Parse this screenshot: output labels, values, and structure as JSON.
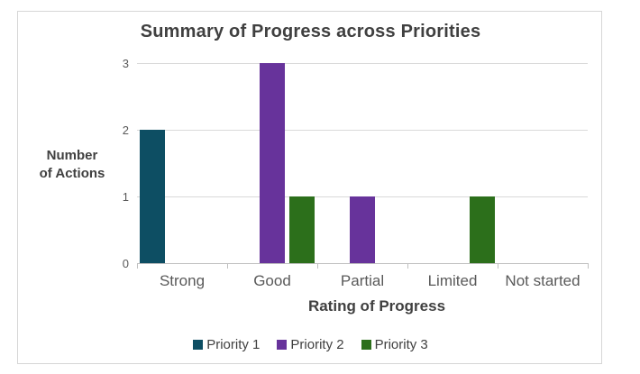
{
  "title": "Summary of Progress across Priorities",
  "y_axis": {
    "title": "Number of Actions",
    "title_lines": [
      "Number",
      "of Actions"
    ],
    "ticks": [
      0,
      1,
      2,
      3
    ]
  },
  "x_axis": {
    "title": "Rating of Progress"
  },
  "legend": {
    "items": [
      "Priority 1",
      "Priority 2",
      "Priority 3"
    ]
  },
  "colors": {
    "priority1": "#0d4e63",
    "priority2": "#67339b",
    "priority3": "#2c6f1b",
    "gridline": "#d9d9d9",
    "axis": "#bfbfbf",
    "title_text": "#404040",
    "tick_text": "#595959",
    "frame_border": "#d6d6d6",
    "background": "#ffffff"
  },
  "chart_data": {
    "type": "bar",
    "title": "Summary of Progress across Priorities",
    "categories": [
      "Strong",
      "Good",
      "Partial",
      "Limited",
      "Not started"
    ],
    "series": [
      {
        "name": "Priority 1",
        "color": "#0d4e63",
        "values": [
          2,
          0,
          0,
          0,
          0
        ]
      },
      {
        "name": "Priority 2",
        "color": "#67339b",
        "values": [
          0,
          3,
          1,
          0,
          0
        ]
      },
      {
        "name": "Priority 3",
        "color": "#2c6f1b",
        "values": [
          0,
          1,
          0,
          1,
          0
        ]
      }
    ],
    "xlabel": "Rating of Progress",
    "ylabel": "Number of Actions",
    "ylim": [
      0,
      3
    ],
    "yticks": [
      0,
      1,
      2,
      3
    ],
    "grid": true,
    "legend_position": "bottom"
  }
}
